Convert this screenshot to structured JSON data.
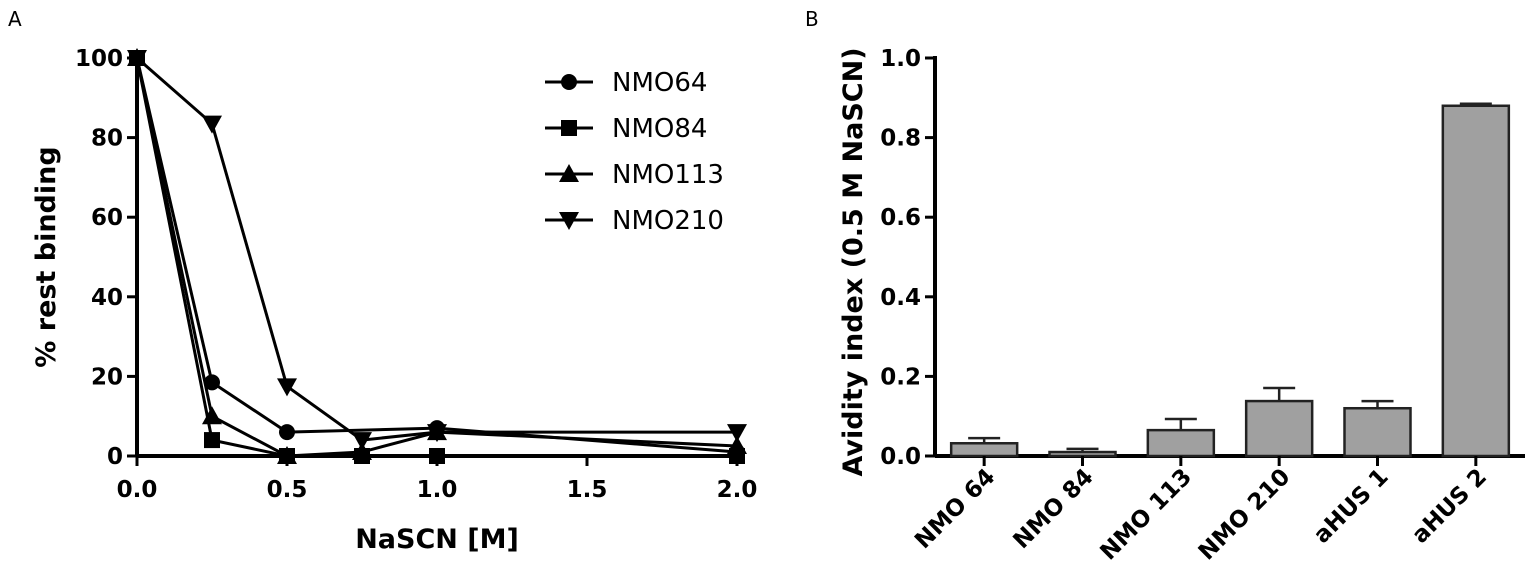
{
  "chart_data": [
    {
      "panel_label": "A",
      "type": "line",
      "xlabel": "NaSCN [M]",
      "ylabel": "% rest binding",
      "xlim": [
        0.0,
        2.0
      ],
      "ylim": [
        0,
        100
      ],
      "xticks": [
        0.0,
        0.5,
        1.0,
        1.5,
        2.0
      ],
      "xtick_labels": [
        "0.0",
        "0.5",
        "1.0",
        "1.5",
        "2.0"
      ],
      "yticks": [
        0,
        20,
        40,
        60,
        80,
        100
      ],
      "ytick_labels": [
        "0",
        "20",
        "40",
        "60",
        "80",
        "100"
      ],
      "legend_position": "top-right",
      "series": [
        {
          "name": "NMO64",
          "marker": "circle",
          "x": [
            0.0,
            0.25,
            0.5,
            1.0,
            2.0
          ],
          "y": [
            100,
            18.5,
            6,
            7,
            1
          ]
        },
        {
          "name": "NMO84",
          "marker": "square",
          "x": [
            0.0,
            0.25,
            0.5,
            0.75,
            1.0,
            2.0
          ],
          "y": [
            100,
            4,
            0,
            0,
            0,
            0
          ]
        },
        {
          "name": "NMO113",
          "marker": "triangle-up",
          "x": [
            0.0,
            0.25,
            0.5,
            0.75,
            1.0,
            2.0
          ],
          "y": [
            100,
            10,
            0,
            1,
            6,
            2.5
          ]
        },
        {
          "name": "NMO210",
          "marker": "triangle-down",
          "x": [
            0.0,
            0.25,
            0.5,
            0.75,
            1.0,
            2.0
          ],
          "y": [
            100,
            83.5,
            17.5,
            4,
            6,
            6
          ]
        }
      ]
    },
    {
      "panel_label": "B",
      "type": "bar",
      "ylabel": "Avidity index (0.5 M NaSCN)",
      "xlabel": "",
      "ylim": [
        0.0,
        1.0
      ],
      "yticks": [
        0.0,
        0.2,
        0.4,
        0.6,
        0.8,
        1.0
      ],
      "ytick_labels": [
        "0.0",
        "0.2",
        "0.4",
        "0.6",
        "0.8",
        "1.0"
      ],
      "categories": [
        "NMO 64",
        "NMO 84",
        "NMO 113",
        "NMO 210",
        "aHUS 1",
        "aHUS 2"
      ],
      "values": [
        0.032,
        0.01,
        0.065,
        0.138,
        0.12,
        0.88
      ],
      "errors": [
        0.013,
        0.008,
        0.028,
        0.033,
        0.018,
        0.005
      ],
      "bar_color": "#a0a0a0"
    }
  ]
}
